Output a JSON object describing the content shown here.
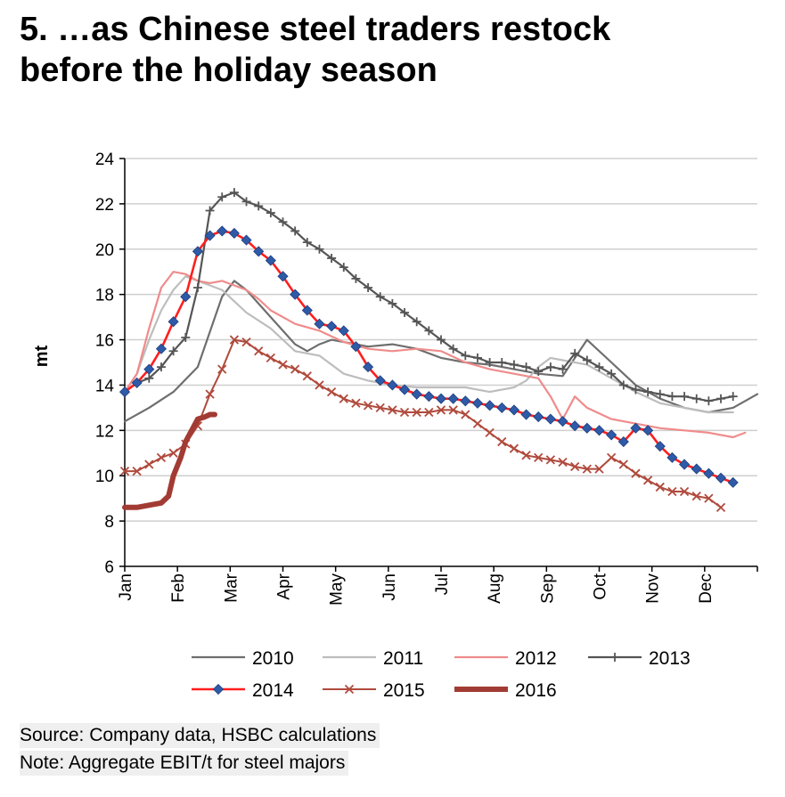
{
  "header": {
    "title_line1": "5. …as Chinese steel traders restock",
    "title_line2": "before the holiday season"
  },
  "footer": {
    "source": "Source: Company data, HSBC calculations",
    "note": "Note: Aggregate EBIT/t for steel majors"
  },
  "chart_data": {
    "type": "line",
    "title": "5. …as Chinese steel traders restock before the holiday season",
    "xlabel": "",
    "ylabel": "mt",
    "ylim": [
      6,
      24
    ],
    "yticks": [
      6,
      8,
      10,
      12,
      14,
      16,
      18,
      20,
      22,
      24
    ],
    "xlim": [
      0,
      52
    ],
    "categories": [
      "Jan",
      "Feb",
      "Mar",
      "Apr",
      "May",
      "Jun",
      "Jul",
      "Aug",
      "Sep",
      "Oct",
      "Nov",
      "Dec"
    ],
    "grid": "horizontal",
    "legend_position": "bottom",
    "series": [
      {
        "name": "2010",
        "color": "#6e6e6e",
        "width": 2.2,
        "marker": "none",
        "x": [
          0,
          2,
          4,
          6,
          8,
          9,
          10,
          12,
          14,
          15,
          16,
          17,
          18,
          19,
          20,
          22,
          24,
          26,
          28,
          30,
          32,
          34,
          36,
          38,
          40,
          41,
          42,
          44,
          46,
          48,
          50,
          51,
          52
        ],
        "values": [
          12.4,
          13.0,
          13.7,
          14.8,
          17.9,
          18.6,
          18.2,
          17.0,
          15.8,
          15.5,
          15.8,
          16.0,
          15.9,
          15.8,
          15.7,
          15.8,
          15.6,
          15.2,
          15.0,
          14.9,
          14.7,
          14.5,
          14.4,
          16.0,
          15.0,
          14.5,
          14.0,
          13.4,
          13.0,
          12.8,
          13.0,
          13.3,
          13.6
        ]
      },
      {
        "name": "2011",
        "color": "#bdbdbd",
        "width": 2.2,
        "marker": "none",
        "x": [
          0,
          1,
          2,
          3,
          4,
          5,
          6,
          7,
          8,
          9,
          10,
          12,
          14,
          16,
          18,
          20,
          22,
          24,
          26,
          28,
          30,
          32,
          33,
          34,
          35,
          36,
          38,
          40,
          42,
          44,
          46,
          48,
          50
        ],
        "values": [
          13.7,
          14.5,
          16.0,
          17.3,
          18.2,
          18.8,
          18.6,
          18.4,
          18.2,
          17.7,
          17.2,
          16.5,
          15.5,
          15.3,
          14.5,
          14.2,
          14.0,
          13.9,
          13.9,
          13.9,
          13.7,
          13.9,
          14.2,
          14.8,
          15.2,
          15.1,
          14.9,
          14.3,
          13.7,
          13.2,
          13.0,
          12.8,
          12.8
        ]
      },
      {
        "name": "2012",
        "color": "#f08b8b",
        "width": 2.2,
        "marker": "none",
        "x": [
          0,
          1,
          2,
          3,
          4,
          5,
          6,
          7,
          8,
          9,
          10,
          11,
          12,
          14,
          16,
          18,
          20,
          22,
          24,
          26,
          28,
          30,
          32,
          34,
          35,
          36,
          37,
          38,
          40,
          42,
          44,
          46,
          48,
          50,
          51
        ],
        "values": [
          13.7,
          14.5,
          16.5,
          18.3,
          19.0,
          18.9,
          18.6,
          18.5,
          18.6,
          18.4,
          18.2,
          17.8,
          17.3,
          16.7,
          16.4,
          15.9,
          15.6,
          15.5,
          15.6,
          15.5,
          15.0,
          14.7,
          14.5,
          14.3,
          13.5,
          12.5,
          13.5,
          13.0,
          12.5,
          12.3,
          12.1,
          12.0,
          11.9,
          11.7,
          11.9
        ]
      },
      {
        "name": "2013",
        "color": "#555555",
        "width": 2.2,
        "marker": "plus",
        "x": [
          0,
          1,
          2,
          3,
          4,
          5,
          6,
          7,
          8,
          9,
          10,
          11,
          12,
          13,
          14,
          15,
          16,
          17,
          18,
          19,
          20,
          21,
          22,
          23,
          24,
          25,
          26,
          27,
          28,
          29,
          30,
          31,
          32,
          33,
          34,
          35,
          36,
          37,
          38,
          39,
          40,
          41,
          42,
          43,
          44,
          45,
          46,
          47,
          48,
          49,
          50
        ],
        "values": [
          13.7,
          14.1,
          14.3,
          14.8,
          15.5,
          16.1,
          18.3,
          21.7,
          22.3,
          22.5,
          22.1,
          21.9,
          21.6,
          21.2,
          20.8,
          20.3,
          20.0,
          19.6,
          19.2,
          18.7,
          18.3,
          17.9,
          17.6,
          17.2,
          16.8,
          16.4,
          16.0,
          15.6,
          15.3,
          15.2,
          15.0,
          15.0,
          14.9,
          14.8,
          14.6,
          14.8,
          14.7,
          15.4,
          15.1,
          14.8,
          14.5,
          14.0,
          13.8,
          13.7,
          13.6,
          13.5,
          13.5,
          13.4,
          13.3,
          13.4,
          13.5
        ]
      },
      {
        "name": "2014",
        "color": "#ff1e1e",
        "width": 2.6,
        "marker": "diamond",
        "x": [
          0,
          1,
          2,
          3,
          4,
          5,
          6,
          7,
          8,
          9,
          10,
          11,
          12,
          13,
          14,
          15,
          16,
          17,
          18,
          19,
          20,
          21,
          22,
          23,
          24,
          25,
          26,
          27,
          28,
          29,
          30,
          31,
          32,
          33,
          34,
          35,
          36,
          37,
          38,
          39,
          40,
          41,
          42,
          43,
          44,
          45,
          46,
          47,
          48,
          49,
          50
        ],
        "values": [
          13.7,
          14.1,
          14.7,
          15.6,
          16.8,
          17.9,
          19.9,
          20.6,
          20.8,
          20.7,
          20.4,
          19.9,
          19.5,
          18.8,
          18.0,
          17.3,
          16.7,
          16.6,
          16.4,
          15.7,
          14.8,
          14.2,
          14.0,
          13.8,
          13.6,
          13.5,
          13.4,
          13.4,
          13.3,
          13.2,
          13.1,
          13.0,
          12.9,
          12.7,
          12.6,
          12.5,
          12.4,
          12.2,
          12.1,
          12.0,
          11.8,
          11.5,
          12.1,
          12.0,
          11.3,
          10.8,
          10.5,
          10.3,
          10.1,
          9.9,
          9.7
        ]
      },
      {
        "name": "2015",
        "color": "#b04a3c",
        "width": 2.0,
        "marker": "x",
        "x": [
          0,
          1,
          2,
          3,
          4,
          5,
          6,
          7,
          8,
          9,
          10,
          11,
          12,
          13,
          14,
          15,
          16,
          17,
          18,
          19,
          20,
          21,
          22,
          23,
          24,
          25,
          26,
          27,
          28,
          29,
          30,
          31,
          32,
          33,
          34,
          35,
          36,
          37,
          38,
          39,
          40,
          41,
          42,
          43,
          44,
          45,
          46,
          47,
          48,
          49
        ],
        "values": [
          10.2,
          10.2,
          10.5,
          10.8,
          11.0,
          11.4,
          12.2,
          13.6,
          14.7,
          16.0,
          15.9,
          15.5,
          15.2,
          14.9,
          14.7,
          14.4,
          14.0,
          13.7,
          13.4,
          13.2,
          13.1,
          13.0,
          12.9,
          12.8,
          12.8,
          12.8,
          12.9,
          12.9,
          12.7,
          12.3,
          11.9,
          11.5,
          11.2,
          10.9,
          10.8,
          10.7,
          10.6,
          10.4,
          10.3,
          10.3,
          10.8,
          10.5,
          10.1,
          9.8,
          9.5,
          9.3,
          9.3,
          9.1,
          9.0,
          8.6
        ]
      },
      {
        "name": "2016",
        "color": "#a23b33",
        "width": 6.0,
        "marker": "none",
        "x": [
          0,
          1,
          2,
          3,
          3.6,
          4,
          4.6,
          5,
          5.6,
          6,
          6.6,
          7,
          7.4
        ],
        "values": [
          8.6,
          8.6,
          8.7,
          8.8,
          9.1,
          10.0,
          10.8,
          11.5,
          12.1,
          12.5,
          12.6,
          12.7,
          12.7
        ]
      }
    ]
  }
}
